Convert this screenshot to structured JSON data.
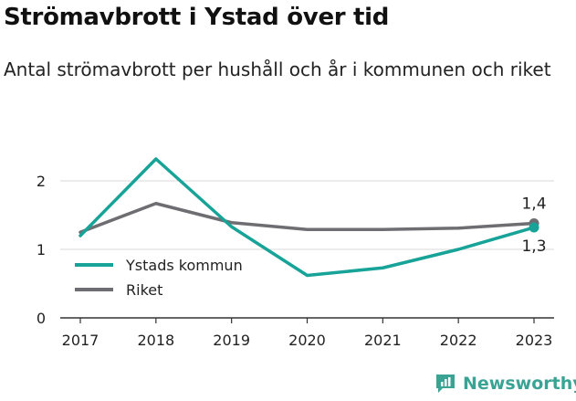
{
  "header": {
    "title": "Strömavbrott i Ystad över tid",
    "subtitle": "Antal strömavbrott per hushåll och år i kommunen och riket"
  },
  "brand": {
    "name": "Newsworthy"
  },
  "chart_data": {
    "type": "line",
    "title": "Strömavbrott i Ystad över tid",
    "subtitle": "Antal strömavbrott per hushåll och år i kommunen och riket",
    "x": [
      "2017",
      "2018",
      "2019",
      "2020",
      "2021",
      "2022",
      "2023"
    ],
    "series": [
      {
        "name": "Ystads kommun",
        "color": "#17a398",
        "values": [
          1.2,
          2.32,
          1.33,
          0.62,
          0.73,
          1.0,
          1.32
        ]
      },
      {
        "name": "Riket",
        "color": "#6e6d72",
        "values": [
          1.25,
          1.67,
          1.39,
          1.29,
          1.29,
          1.31,
          1.38
        ]
      }
    ],
    "yticks": [
      "0",
      "1",
      "2"
    ],
    "ylim": [
      0,
      2.5
    ],
    "end_labels": {
      "Riket": "1,4",
      "Ystads kommun": "1,3"
    },
    "legend_position": "bottom-left",
    "grid": true,
    "xlabel": "",
    "ylabel": ""
  }
}
